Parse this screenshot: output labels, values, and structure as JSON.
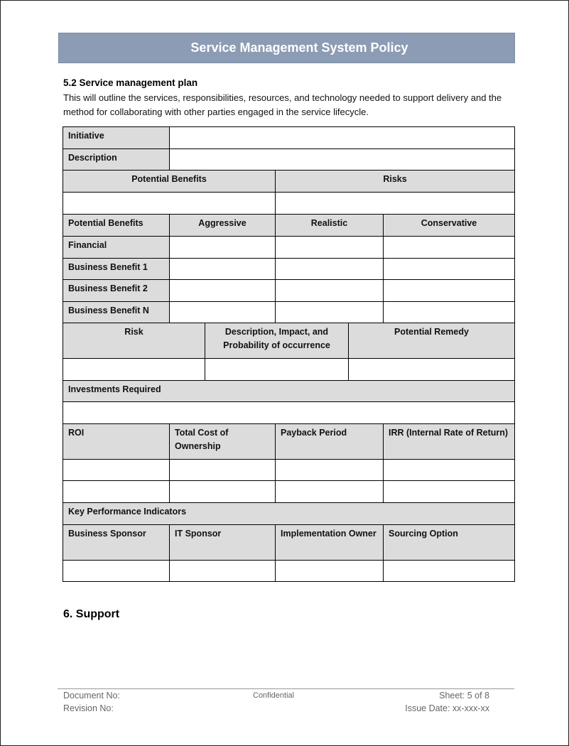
{
  "header": {
    "title": "Service Management System Policy"
  },
  "section": {
    "heading": "5.2 Service management plan",
    "body": "This will outline the services, responsibilities, resources, and technology needed to support delivery and the method for collaborating with other parties engaged in the service lifecycle."
  },
  "table": {
    "initiative": "Initiative",
    "description": "Description",
    "potential_benefits": "Potential Benefits",
    "risks": "Risks",
    "benefit_headers": [
      "Potential Benefits",
      "Aggressive",
      "Realistic",
      "Conservative"
    ],
    "benefit_rows": [
      "Financial",
      "Business Benefit 1",
      "Business Benefit 2",
      "Business Benefit N"
    ],
    "risk_headers": [
      "Risk",
      "Description, Impact, and Probability of occurrence",
      "Potential Remedy"
    ],
    "investments": "Investments Required",
    "roi_headers": [
      "ROI",
      "Total Cost of Ownership",
      "Payback Period",
      "IRR (Internal Rate of Return)"
    ],
    "kpi": "Key Performance Indicators",
    "owner_headers": [
      "Business Sponsor",
      "IT Sponsor",
      "Implementation Owner",
      "Sourcing Option"
    ]
  },
  "next_section": "6. Support",
  "footer": {
    "document_no": "Document No:",
    "revision_no": "Revision No:",
    "confidential": "Confidential",
    "sheet": "Sheet: 5 of 8",
    "issue_date": "Issue Date: xx-xxx-xx"
  }
}
